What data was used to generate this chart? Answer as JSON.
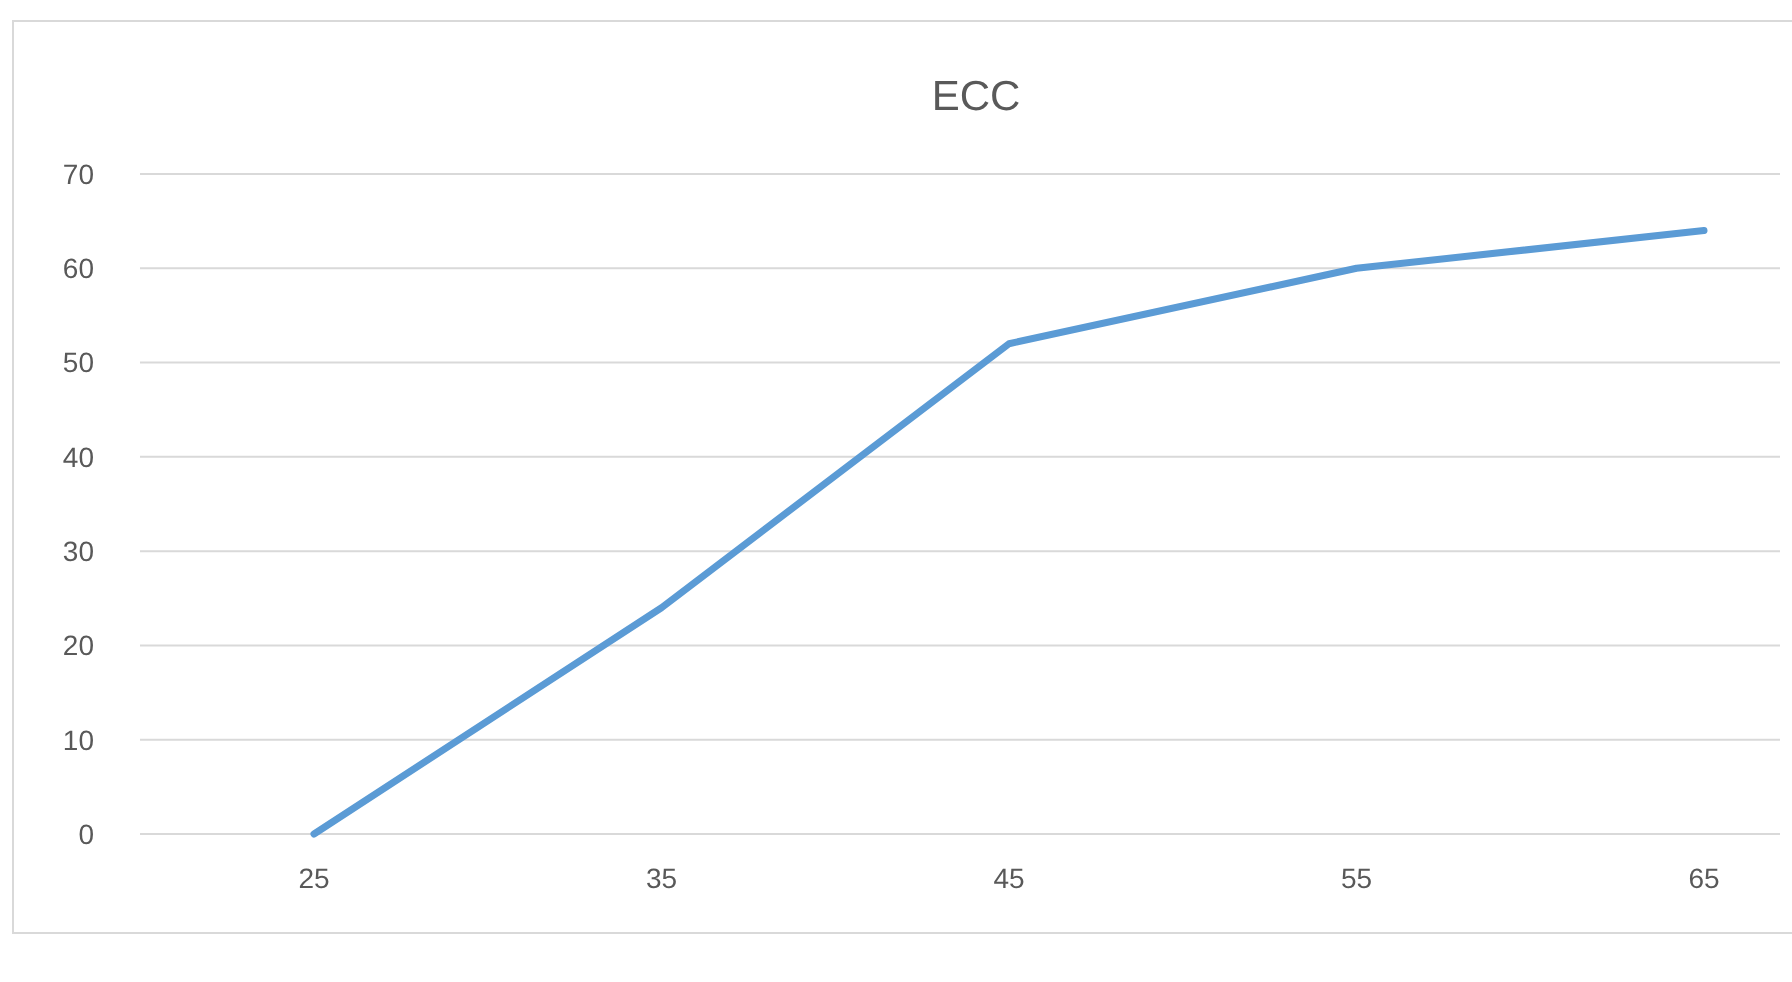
{
  "chart_data": {
    "type": "line",
    "title": "ECC",
    "categories": [
      "25",
      "35",
      "45",
      "55",
      "65"
    ],
    "series": [
      {
        "color": "#5b9bd5",
        "values": [
          0,
          24,
          52,
          60,
          64
        ]
      }
    ],
    "ylim": [
      0,
      70
    ],
    "yticks": [
      0,
      10,
      20,
      30,
      40,
      50,
      60,
      70
    ],
    "grid": "y",
    "marker": "none",
    "line_style": "solid"
  }
}
